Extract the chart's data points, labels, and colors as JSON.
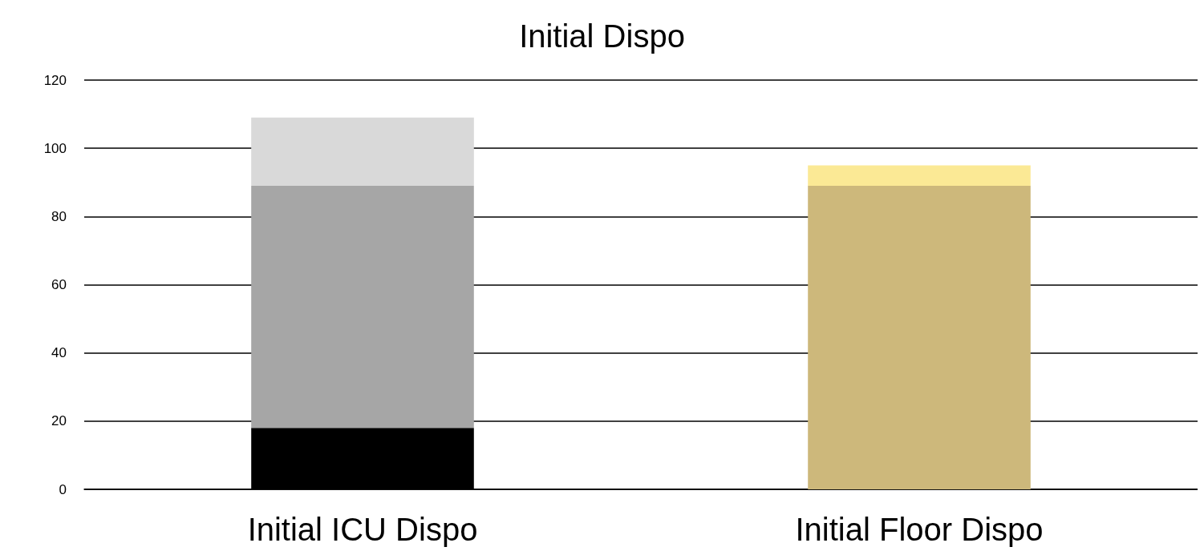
{
  "chart_data": {
    "type": "bar",
    "title": "Initial Dispo",
    "categories": [
      "Initial ICU Dispo",
      "Initial Floor Dispo"
    ],
    "stacked": true,
    "series": [
      {
        "color": "#000000",
        "values": [
          18,
          null
        ]
      },
      {
        "color": "#a6a6a6",
        "values": [
          71,
          null
        ]
      },
      {
        "color": "#d9d9d9",
        "values": [
          20,
          null
        ]
      },
      {
        "color": "#cdb87b",
        "values": [
          null,
          89
        ]
      },
      {
        "color": "#fbe995",
        "values": [
          null,
          6
        ]
      }
    ],
    "ylim": [
      0,
      120
    ],
    "yticks": [
      0,
      20,
      40,
      60,
      80,
      100,
      120
    ],
    "grid": "y"
  }
}
